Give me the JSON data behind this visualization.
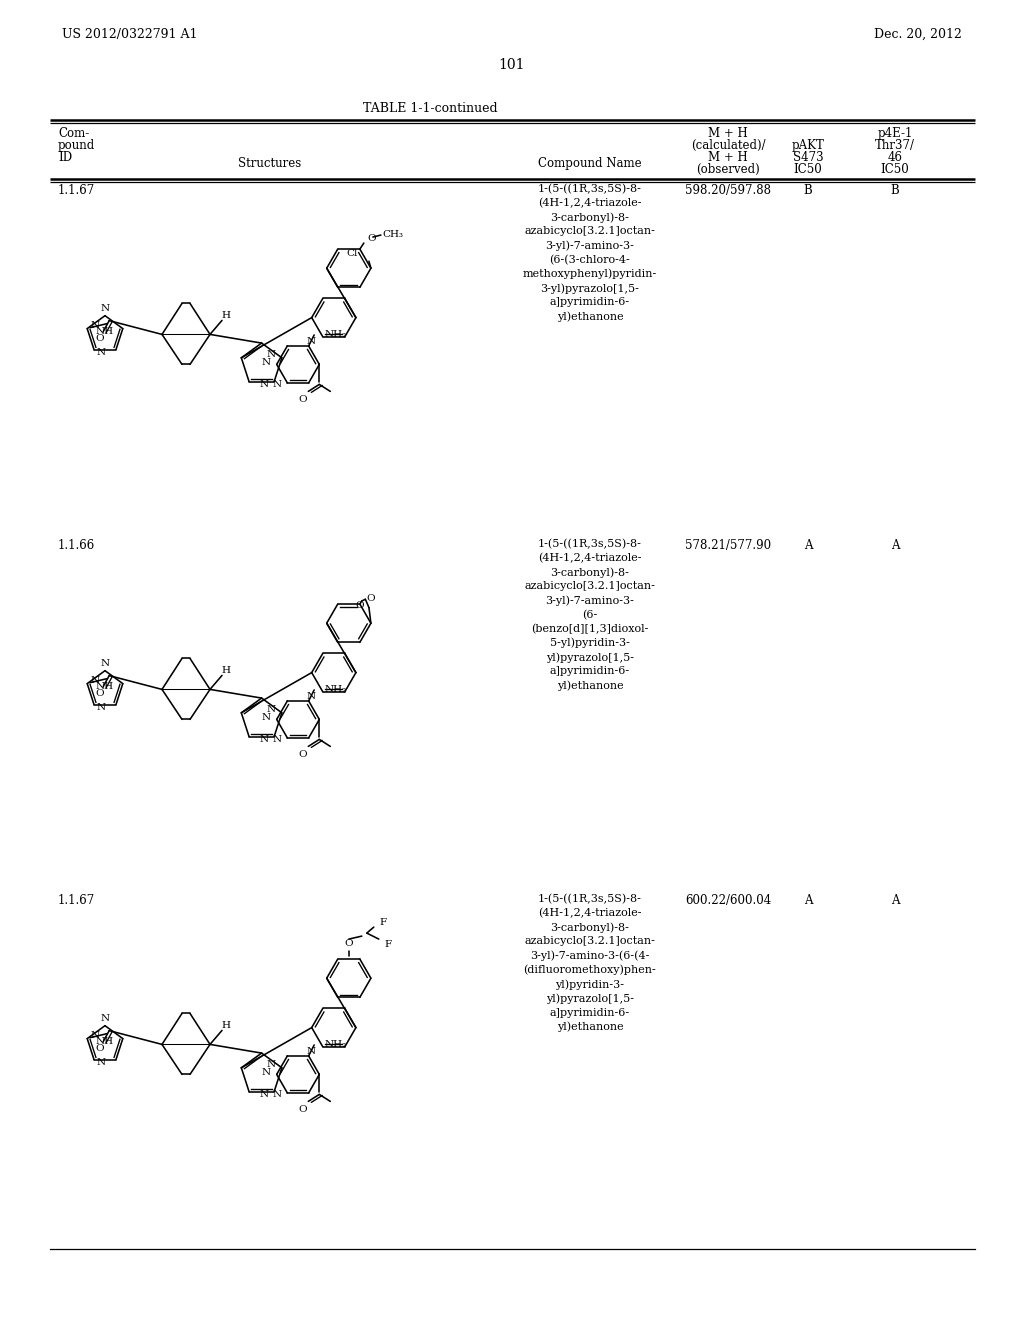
{
  "page_header_left": "US 2012/0322791 A1",
  "page_header_right": "Dec. 20, 2012",
  "page_number": "101",
  "table_title": "TABLE 1-1-continued",
  "background_color": "#ffffff",
  "text_color": "#000000",
  "rows": [
    {
      "id": "1.1.67",
      "compound_name": "1-(5-((1R,3s,5S)-8-\n(4H-1,2,4-triazole-\n3-carbonyl)-8-\nazabicyclo[3.2.1]octan-\n3-yl)-7-amino-3-\n(6-(3-chloro-4-\nmethoxyphenyl)pyridin-\n3-yl)pyrazolo[1,5-\na]pyrimidin-6-\nyl)ethanone",
      "mh": "598.20/597.88",
      "pakt": "B",
      "p4e1": "B",
      "variant": 1
    },
    {
      "id": "1.1.66",
      "compound_name": "1-(5-((1R,3s,5S)-8-\n(4H-1,2,4-triazole-\n3-carbonyl)-8-\nazabicyclo[3.2.1]octan-\n3-yl)-7-amino-3-\n(6-\n(benzo[d][1,3]dioxol-\n5-yl)pyridin-3-\nyl)pyrazolo[1,5-\na]pyrimidin-6-\nyl)ethanone",
      "mh": "578.21/577.90",
      "pakt": "A",
      "p4e1": "A",
      "variant": 2
    },
    {
      "id": "1.1.67",
      "compound_name": "1-(5-((1R,3s,5S)-8-\n(4H-1,2,4-triazole-\n3-carbonyl)-8-\nazabicyclo[3.2.1]octan-\n3-yl)-7-amino-3-(6-(4-\n(difluoromethoxy)phen-\nyl)pyridin-3-\nyl)pyrazolo[1,5-\na]pyrimidin-6-\nyl)ethanone",
      "mh": "600.22/600.04",
      "pakt": "A",
      "p4e1": "A",
      "variant": 3
    }
  ]
}
